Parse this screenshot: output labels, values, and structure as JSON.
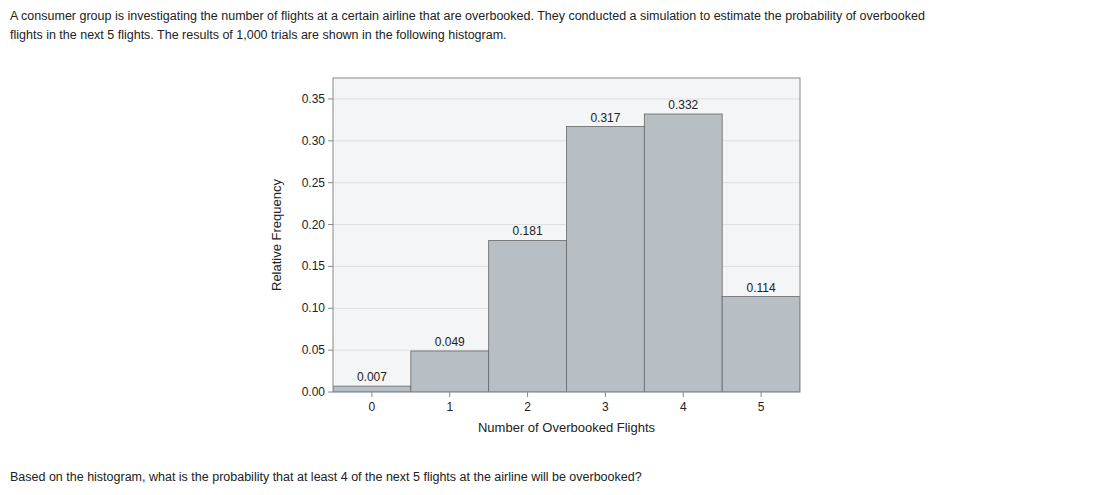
{
  "chart_data": {
    "type": "bar",
    "title": "A consumer group is investigating the number of flights at a certain airline that are overbooked. They conducted a simulation to estimate the probability of overbooked",
    "subtitle": "flights in the next 5 flights. The results of 1,000 trials are shown in the following histogram.",
    "annotations": [
      "Based on the histogram, what is the probability that at least 4 of the next 5 flights at the airline will be overbooked?"
    ],
    "xlabel": "Number of Overbooked Flights",
    "ylabel": "Relative Frequency",
    "categories": [
      "0",
      "1",
      "2",
      "3",
      "4",
      "5"
    ],
    "values": [
      0.007,
      0.049,
      0.181,
      0.317,
      0.332,
      0.114
    ],
    "color": "#b8bfc4",
    "ylim": [
      0,
      0.375
    ],
    "yticks": [
      {
        "value": 0,
        "label": "0.00"
      },
      0.05,
      {
        "value": 0.1,
        "label": "0.10"
      },
      0.15,
      {
        "value": 0.2,
        "label": "0.20"
      },
      0.25,
      {
        "value": 0.3,
        "label": "0.30"
      },
      0.35
    ],
    "grid": true,
    "data_labels": true
  }
}
